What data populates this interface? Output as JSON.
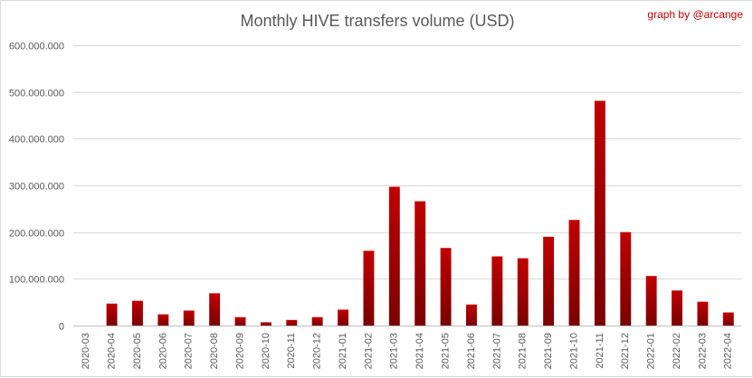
{
  "credit": "graph by @arcange",
  "colors": {
    "bar_top": "#c00000",
    "bar_bottom": "#7a0000",
    "grid": "#d9d9d9",
    "text": "#595959",
    "credit": "#c00000"
  },
  "chart_data": {
    "type": "bar",
    "title": "Monthly HIVE transfers volume (USD)",
    "xlabel": "",
    "ylabel": "",
    "ylim": [
      0,
      600000000
    ],
    "yticks": [
      0,
      100000000,
      200000000,
      300000000,
      400000000,
      500000000,
      600000000
    ],
    "ytick_labels": [
      "0",
      "100.000.000",
      "200.000.000",
      "300.000.000",
      "400.000.000",
      "500.000.000",
      "600.000.000"
    ],
    "grid": true,
    "legend": "none",
    "categories": [
      "2020-03",
      "2020-04",
      "2020-05",
      "2020-06",
      "2020-07",
      "2020-08",
      "2020-09",
      "2020-10",
      "2020-11",
      "2020-12",
      "2021-01",
      "2021-02",
      "2021-03",
      "2021-04",
      "2021-05",
      "2021-06",
      "2021-07",
      "2021-08",
      "2021-09",
      "2021-10",
      "2021-11",
      "2021-12",
      "2022-01",
      "2022-02",
      "2022-03",
      "2022-04"
    ],
    "values": [
      0,
      47000000,
      53000000,
      24000000,
      32000000,
      69000000,
      18000000,
      7000000,
      12000000,
      18000000,
      34000000,
      160000000,
      297000000,
      266000000,
      166000000,
      45000000,
      148000000,
      144000000,
      190000000,
      226000000,
      481000000,
      200000000,
      106000000,
      75000000,
      51000000,
      28000000
    ]
  }
}
